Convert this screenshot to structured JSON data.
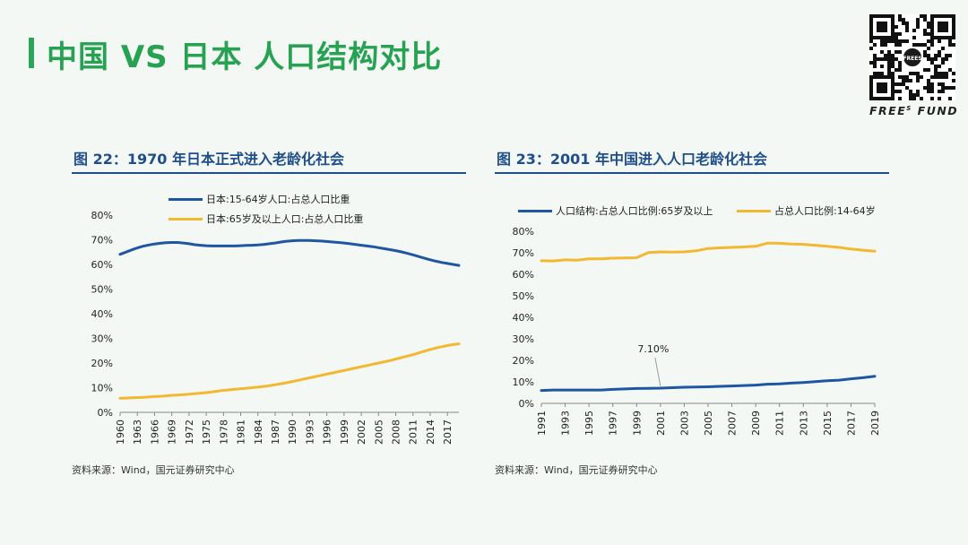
{
  "page": {
    "title": "中国 VS 日本 人口结构对比",
    "brand": "FREE",
    "brand_sup": "S",
    "brand_suffix": "FUND",
    "qr_badge": "FREES",
    "colors": {
      "accent_green": "#27a152",
      "series_blue": "#1f56a3",
      "series_yellow": "#f4b731",
      "fig_title_blue": "#1f4e8c"
    }
  },
  "figures": [
    {
      "title": "图 22：1970 年日本正式进入老龄化社会",
      "source": "资料来源：Wind，国元证券研究中心"
    },
    {
      "title": "图 23：2001 年中国进入人口老龄化社会",
      "source": "资料来源：Wind，国元证券研究中心"
    }
  ],
  "chart_data": [
    {
      "type": "line",
      "x": [
        1960,
        1961,
        1962,
        1963,
        1964,
        1965,
        1966,
        1967,
        1968,
        1969,
        1970,
        1971,
        1972,
        1973,
        1974,
        1975,
        1976,
        1977,
        1978,
        1979,
        1980,
        1981,
        1982,
        1983,
        1984,
        1985,
        1986,
        1987,
        1988,
        1989,
        1990,
        1991,
        1992,
        1993,
        1994,
        1995,
        1996,
        1997,
        1998,
        1999,
        2000,
        2001,
        2002,
        2003,
        2004,
        2005,
        2006,
        2007,
        2008,
        2009,
        2010,
        2011,
        2012,
        2013,
        2014,
        2015,
        2016,
        2017,
        2018,
        2019
      ],
      "x_ticks": [
        "1960",
        "1963",
        "1966",
        "1969",
        "1972",
        "1975",
        "1978",
        "1981",
        "1984",
        "1987",
        "1990",
        "1993",
        "1996",
        "1999",
        "2002",
        "2005",
        "2008",
        "2011",
        "2014",
        "2017"
      ],
      "series": [
        {
          "name": "日本:15-64岁人口:占总人口比重",
          "color": "#1f56a3",
          "values": [
            64.1,
            65.0,
            65.9,
            66.7,
            67.4,
            67.9,
            68.3,
            68.6,
            68.8,
            68.9,
            68.9,
            68.7,
            68.4,
            68.0,
            67.8,
            67.6,
            67.5,
            67.5,
            67.5,
            67.5,
            67.5,
            67.6,
            67.7,
            67.8,
            67.9,
            68.1,
            68.4,
            68.7,
            69.1,
            69.4,
            69.6,
            69.7,
            69.7,
            69.7,
            69.6,
            69.5,
            69.3,
            69.1,
            68.9,
            68.7,
            68.4,
            68.1,
            67.8,
            67.5,
            67.2,
            66.8,
            66.4,
            66.0,
            65.6,
            65.1,
            64.5,
            63.9,
            63.2,
            62.5,
            61.9,
            61.3,
            60.8,
            60.4,
            60.0,
            59.6
          ]
        },
        {
          "name": "日本:65岁及以上人口:占总人口比重",
          "color": "#f4b731",
          "values": [
            5.7,
            5.8,
            5.9,
            6.0,
            6.1,
            6.2,
            6.4,
            6.5,
            6.7,
            6.9,
            7.0,
            7.2,
            7.4,
            7.6,
            7.8,
            8.0,
            8.3,
            8.6,
            8.9,
            9.1,
            9.4,
            9.6,
            9.8,
            10.0,
            10.2,
            10.5,
            10.8,
            11.2,
            11.6,
            12.0,
            12.5,
            13.0,
            13.5,
            14.0,
            14.5,
            15.0,
            15.5,
            16.0,
            16.5,
            17.0,
            17.5,
            18.0,
            18.5,
            19.0,
            19.5,
            20.0,
            20.5,
            21.0,
            21.6,
            22.2,
            22.8,
            23.4,
            24.1,
            24.8,
            25.5,
            26.1,
            26.6,
            27.1,
            27.5,
            27.8
          ]
        }
      ],
      "y_ticks": [
        "0%",
        "10%",
        "20%",
        "30%",
        "40%",
        "50%",
        "60%",
        "70%",
        "80%"
      ],
      "ylim": [
        0,
        80
      ]
    },
    {
      "type": "line",
      "x": [
        1991,
        1992,
        1993,
        1994,
        1995,
        1996,
        1997,
        1998,
        1999,
        2000,
        2001,
        2002,
        2003,
        2004,
        2005,
        2006,
        2007,
        2008,
        2009,
        2010,
        2011,
        2012,
        2013,
        2014,
        2015,
        2016,
        2017,
        2018,
        2019
      ],
      "x_ticks": [
        "1991",
        "1993",
        "1995",
        "1997",
        "1999",
        "2001",
        "2003",
        "2005",
        "2007",
        "2009",
        "2011",
        "2013",
        "2015",
        "2017",
        "2019"
      ],
      "series": [
        {
          "name": "人口结构:占总人口比例:65岁及以上",
          "color": "#1f56a3",
          "values": [
            6.0,
            6.2,
            6.2,
            6.2,
            6.2,
            6.2,
            6.5,
            6.7,
            6.9,
            7.0,
            7.1,
            7.3,
            7.5,
            7.6,
            7.7,
            7.9,
            8.1,
            8.3,
            8.5,
            8.9,
            9.1,
            9.4,
            9.7,
            10.1,
            10.5,
            10.8,
            11.4,
            11.9,
            12.6
          ]
        },
        {
          "name": "占总人口比例:14-64岁",
          "color": "#f4b731",
          "values": [
            66.3,
            66.2,
            66.7,
            66.6,
            67.2,
            67.2,
            67.5,
            67.6,
            67.7,
            70.1,
            70.4,
            70.3,
            70.4,
            70.9,
            72.0,
            72.3,
            72.5,
            72.7,
            73.0,
            74.5,
            74.4,
            74.1,
            73.9,
            73.5,
            73.0,
            72.5,
            71.8,
            71.2,
            70.7
          ]
        }
      ],
      "annotation": {
        "label": "7.10%",
        "x": 2001,
        "y": 7.1
      },
      "y_ticks": [
        "0%",
        "10%",
        "20%",
        "30%",
        "40%",
        "50%",
        "60%",
        "70%",
        "80%"
      ],
      "ylim": [
        0,
        80
      ]
    }
  ]
}
